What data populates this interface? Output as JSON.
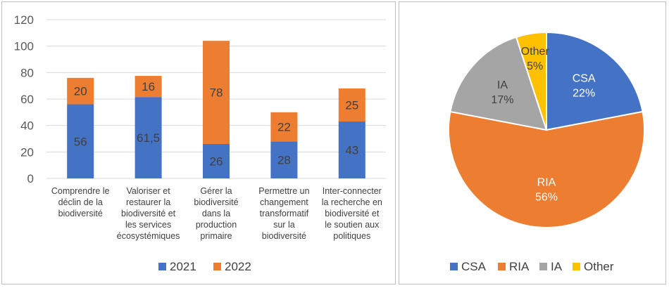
{
  "colors": {
    "blue": "#4472c4",
    "orange": "#ed7d31",
    "gray": "#a5a5a5",
    "yellow": "#ffc000",
    "grid": "#d9d9d9"
  },
  "chart_data": [
    {
      "type": "bar",
      "stacked": true,
      "categories": [
        [
          "Comprendre le",
          "déclin de la",
          "biodiversité"
        ],
        [
          "Valoriser et",
          "restaurer la",
          "biodiversité et",
          "les services",
          "écosystémiques"
        ],
        [
          "Gérer la",
          "biodiversité",
          "dans la",
          "production",
          "primaire"
        ],
        [
          "Permettre un",
          "changement",
          "transformatif",
          "sur la",
          "biodiversité"
        ],
        [
          "Inter-connecter",
          "la recherche en",
          "biodiversité et",
          "le soutien aux",
          "politiques"
        ]
      ],
      "series": [
        {
          "name": "2021",
          "values": [
            56,
            61.5,
            26,
            28,
            43
          ],
          "labels": [
            "56",
            "61,5",
            "26",
            "28",
            "43"
          ],
          "color": "#4472c4"
        },
        {
          "name": "2022",
          "values": [
            20,
            16,
            78,
            22,
            25
          ],
          "labels": [
            "20",
            "16",
            "78",
            "22",
            "25"
          ],
          "color": "#ed7d31"
        }
      ],
      "ylim": [
        0,
        120
      ],
      "yticks": [
        0,
        20,
        40,
        60,
        80,
        100,
        120
      ],
      "grid": true,
      "legend": "bottom"
    },
    {
      "type": "pie",
      "slices": [
        {
          "name": "CSA",
          "value": 22,
          "label": "22%",
          "color": "#4472c4"
        },
        {
          "name": "RIA",
          "value": 56,
          "label": "56%",
          "color": "#ed7d31"
        },
        {
          "name": "IA",
          "value": 17,
          "label": "17%",
          "color": "#a5a5a5"
        },
        {
          "name": "Other",
          "value": 5,
          "label": "5%",
          "color": "#ffc000"
        }
      ],
      "legend": "bottom"
    }
  ]
}
